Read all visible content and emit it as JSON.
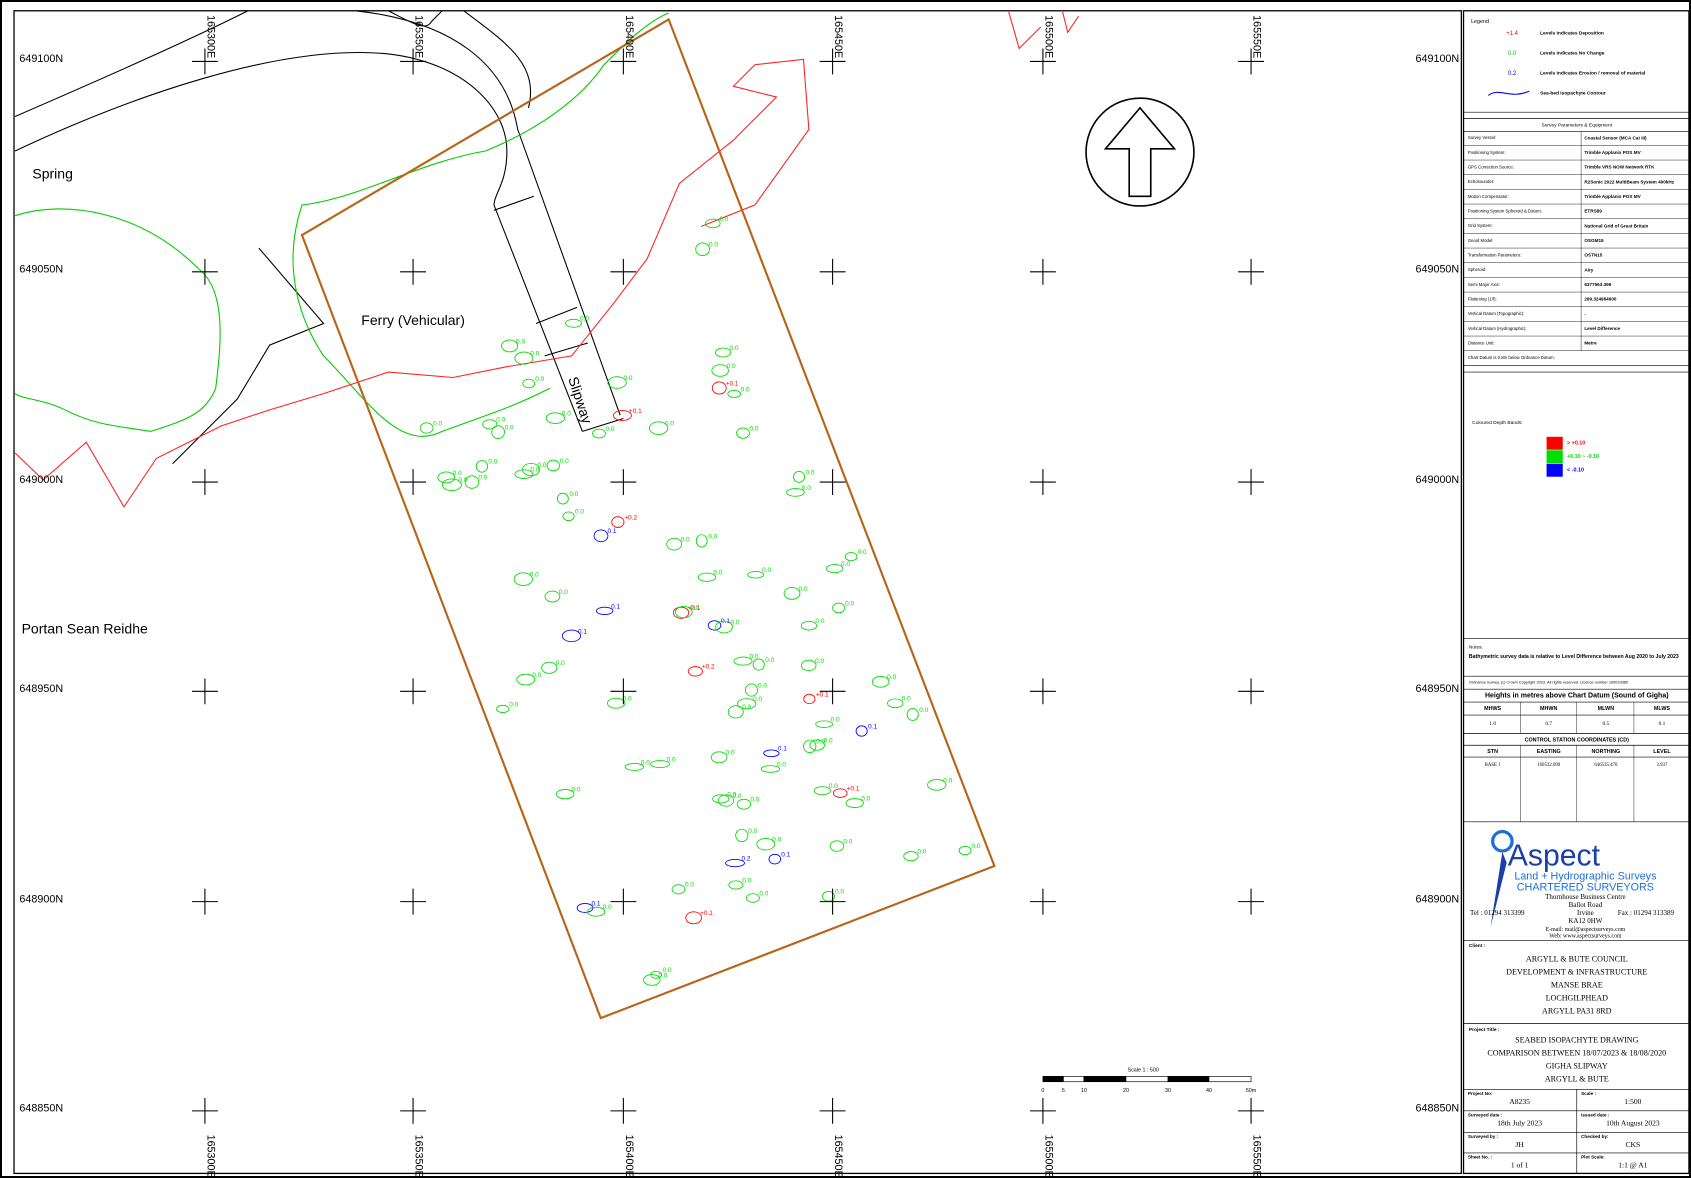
{
  "map": {
    "place_labels": [
      "Spring",
      "Ferry (Vehicular)",
      "Slipway",
      "Portan Sean Reidhe"
    ],
    "eastings": [
      "165300E",
      "165350E",
      "165400E",
      "165450E",
      "165500E",
      "165550E"
    ],
    "northings": [
      "649100N",
      "649050N",
      "649000N",
      "648950N",
      "648900N",
      "648850N"
    ],
    "spot_levels": [
      {
        "color": "#ff0000",
        "labels": [
          "+0.1",
          "+0.1",
          "+0.2",
          "+0.1",
          "+0.1",
          "+0.1",
          "+0.2",
          "+0.1"
        ]
      },
      {
        "color": "#0000ff",
        "labels": [
          "0.1",
          "0.1",
          "0.1",
          "0.1",
          "0.1",
          "0.1",
          "0.1",
          "0.2",
          "0.1"
        ]
      },
      {
        "color": "#00dd00",
        "labels": [
          "0.0",
          "0.0",
          "0.0",
          "0.0",
          "0.0",
          "0.0",
          "0.0",
          "0.0",
          "0.0",
          "0.0",
          "0.0",
          "0.0",
          "0.0",
          "0.0",
          "0.0",
          "0.0",
          "0.0",
          "0.0",
          "0.0",
          "0.0",
          "0.0",
          "0.0",
          "0.0",
          "0.0",
          "0.0",
          "0.0",
          "0.0",
          "0.0",
          "0.0",
          "0.0",
          "0.0",
          "0.0",
          "0.0",
          "0.0",
          "0.0",
          "0.0",
          "0.0",
          "0.0",
          "0.0",
          "0.0",
          "0.0",
          "0.0",
          "0.0",
          "0.0",
          "0.0",
          "0.0",
          "0.0",
          "0.0",
          "0.0",
          "0.0",
          "0.0",
          "0.0",
          "0.0",
          "0.0",
          "0.0",
          "0.0",
          "0.0",
          "0.0",
          "0.0",
          "0.0",
          "0.0",
          "0.0",
          "0.0",
          "0.0",
          "0.0",
          "0.0",
          "0.0",
          "0.0",
          "0.0",
          "0.0",
          "0.0",
          "0.0",
          "0.0",
          "0.0",
          "0.0",
          "0.0",
          "0.0",
          "0.0",
          "0.0",
          "0.0"
        ]
      }
    ],
    "scale_bar": {
      "title": "Scale 1 : 500",
      "labels": [
        "0",
        "5",
        "10",
        "20",
        "30",
        "40",
        "50m"
      ]
    }
  },
  "legend": {
    "title": "Legend",
    "items": [
      {
        "value": "+1.4",
        "text": "Levels Indicates Deposition",
        "color": "#ff0000"
      },
      {
        "value": "0.0",
        "text": "Levels Indicates No Change",
        "color": "#00cc00"
      },
      {
        "value": "0.2",
        "text": "Levels Indicates Erosion / removal of material",
        "color": "#0000ff"
      },
      {
        "text": "Sea-bed Isopachyte Contour",
        "color": "#0000ff"
      }
    ]
  },
  "survey_parameters": {
    "title": "Survey Parameters & Equipment",
    "rows": [
      [
        "Survey Vessel:",
        "Coastal Sensor (MCA Cat III)"
      ],
      [
        "Positioning System:",
        "Trimble Applanix POS MV"
      ],
      [
        "GPS Correction Source:",
        "Trimble VRS NOW Network RTK"
      ],
      [
        "Echosounder:",
        "R2Sonic 2022 MultiBeam System 400kHz"
      ],
      [
        "Motion Compensator:",
        "Trimble Applanix POS MV"
      ],
      [
        "Positioning System Spheroid & Datum:",
        "ETRS89"
      ],
      [
        "Grid System:",
        "National Grid of Great Britain"
      ],
      [
        "Geoid Model:",
        "OSGM15"
      ],
      [
        "Transformation Parameters:",
        "OSTN15"
      ],
      [
        "Spheroid:",
        "Airy"
      ],
      [
        "Semi Major Axis:",
        "6377563.396"
      ],
      [
        "Flattening (1/f):",
        "299.324964600"
      ],
      [
        "Vertical Datum (Topographic):",
        "-"
      ],
      [
        "Vertical Datum (Hydrographic):",
        "Level Difference"
      ],
      [
        "Distance Unit:",
        "Metre"
      ]
    ],
    "note": "Chart Datum is 0.8m below Ordnance Datum."
  },
  "depth_bands": {
    "title": "Coloured Depth Bands:",
    "bands": [
      {
        "label": "> +0.10",
        "color": "#ff0000"
      },
      {
        "label": "+0.10 ~ -0.10",
        "color": "#00dd00"
      },
      {
        "label": "< -0.10",
        "color": "#0000ff"
      }
    ]
  },
  "notes": {
    "title": "Notes:",
    "text": "Bathymetric survey data is relative to Level Difference between Aug 2020 to July 2023",
    "copyright": "Ordnance Survey, (c) Crown Copyright 2023. All rights reserved. Licence number 100023380"
  },
  "heights": {
    "title": "Heights in metres above Chart Datum (Sound of Gigha)",
    "header": [
      "MHWS",
      "MHWN",
      "MLWN",
      "MLWS"
    ],
    "values": [
      "1.0",
      "0.7",
      "0.5",
      "0.1"
    ]
  },
  "control": {
    "title": "CONTROL STATION COORDINATES (CD)",
    "header": [
      "STN",
      "EASTING",
      "NORTHING",
      "LEVEL"
    ],
    "rows": [
      [
        "BASE 1",
        "160532.099",
        "646535.470",
        "3.937"
      ]
    ]
  },
  "company": {
    "name": "Aspect",
    "tagline": "Land + Hydrographic Surveys",
    "subtitle": "CHARTERED SURVEYORS",
    "address": [
      "Thornhouse Business Centre",
      "Ballot Road",
      "Irvine",
      "KA12 0HW"
    ],
    "tel": "Tel : 01294 313399",
    "fax": "Fax : 01294 313389",
    "email": "E-mail: mail@aspectsurveys.com",
    "web": "Web: www.aspectsurveys.com"
  },
  "client": {
    "label": "Client :",
    "lines": [
      "ARGYLL & BUTE COUNCIL",
      "DEVELOPMENT & INFRASTRUCTURE",
      "MANSE BRAE",
      "LOCHGILPHEAD",
      "ARGYLL  PA31 8RD"
    ]
  },
  "project": {
    "label": "Project Title :",
    "lines": [
      "SEABED ISOPACHYTE DRAWING",
      "COMPARISON BETWEEN 18/07/2023 & 18/08/2020",
      "GIGHA SLIPWAY",
      "ARGYLL & BUTE"
    ]
  },
  "project_info": [
    {
      "label": "Project No:",
      "value": "A8235"
    },
    {
      "label": "Scale :",
      "value": "1:500"
    },
    {
      "label": "Surveyed date :",
      "value": "18th July 2023"
    },
    {
      "label": "Issued date :",
      "value": "10th August 2023"
    },
    {
      "label": "Surveyed by :",
      "value": "JH"
    },
    {
      "label": "Checked by:",
      "value": "CKS"
    },
    {
      "label": "Sheet No. :",
      "value": "1 of 1"
    },
    {
      "label": "Plot Scale:",
      "value": "1:1 @ A1"
    }
  ]
}
